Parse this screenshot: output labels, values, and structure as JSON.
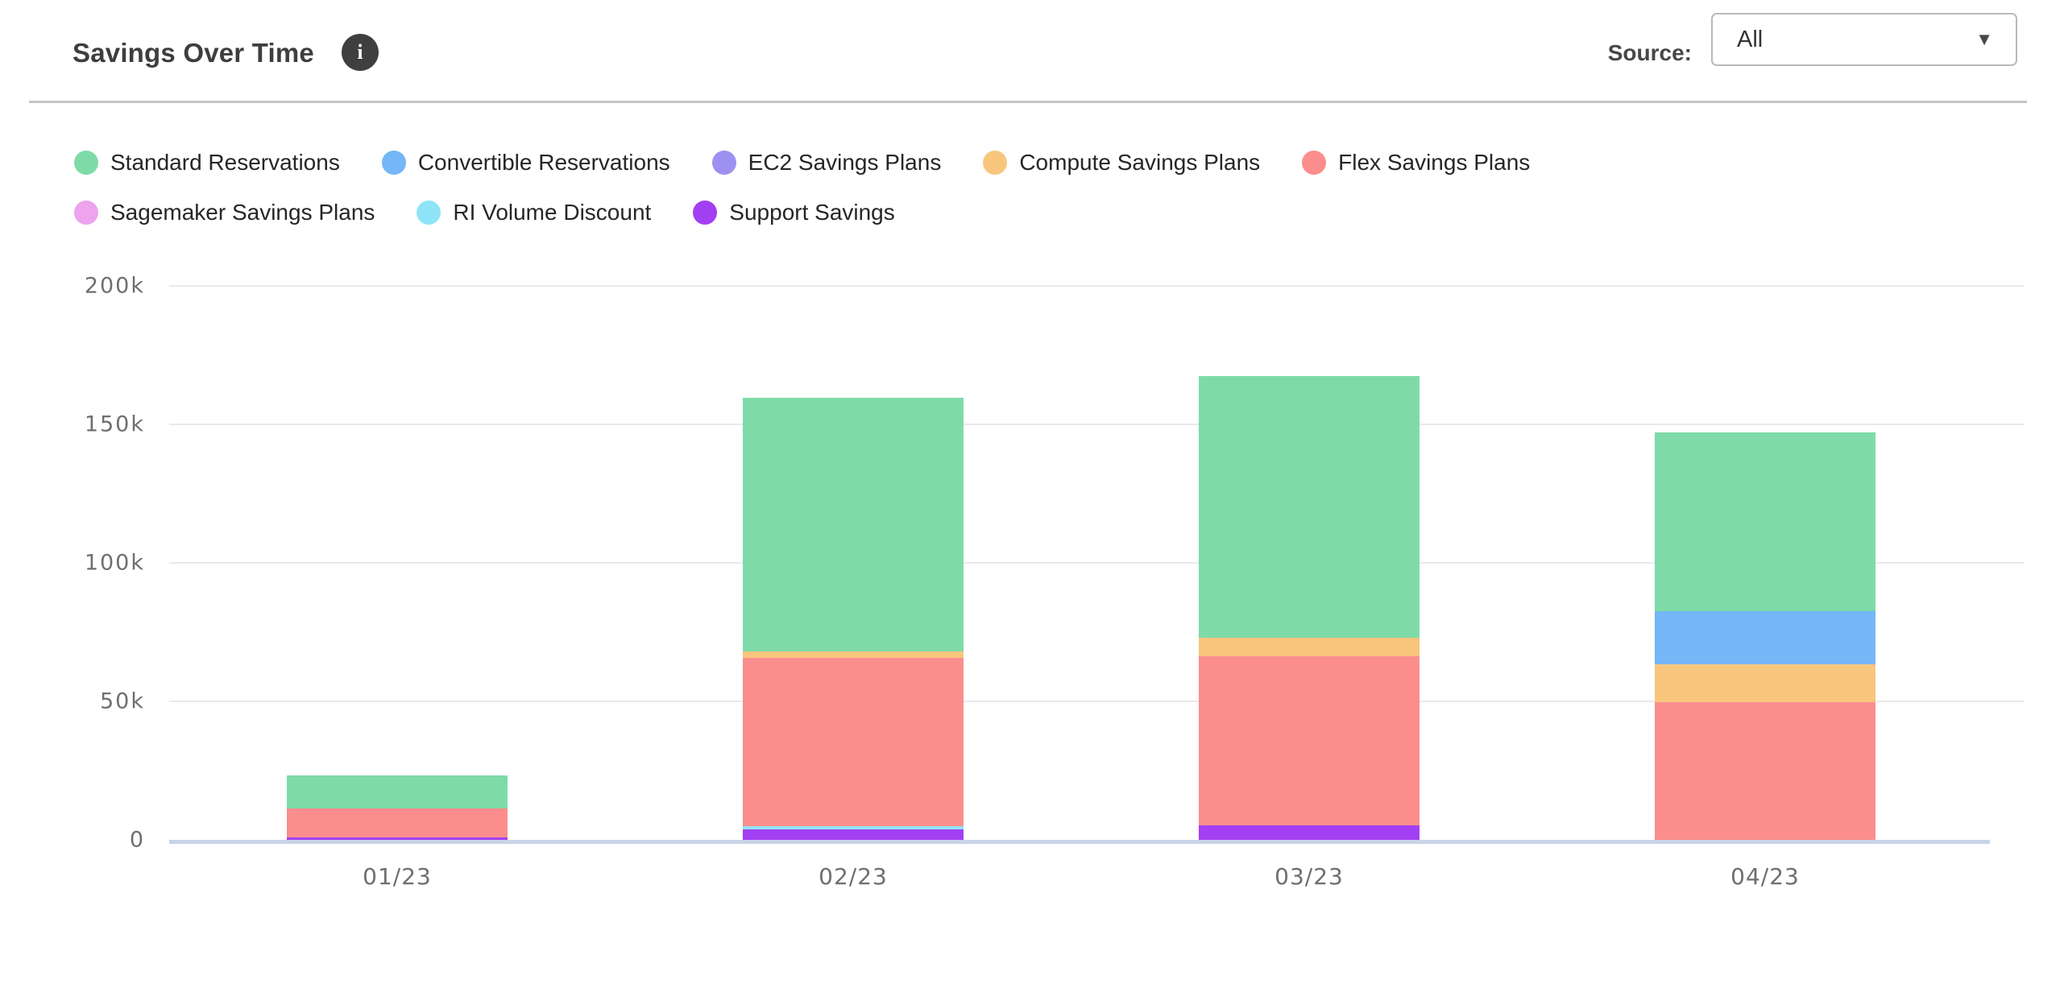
{
  "header": {
    "title": "Savings Over Time",
    "info_icon_glyph": "i",
    "source_label": "Source:",
    "source_value": "All",
    "dropdown_caret_glyph": "▼"
  },
  "chart_data": {
    "type": "bar",
    "stacked": true,
    "title": "Savings Over Time",
    "categories": [
      "01/23",
      "02/23",
      "03/23",
      "04/23"
    ],
    "value_unit": "k",
    "series": [
      {
        "name": "Standard Reservations",
        "color": "#7edba8",
        "values": [
          12.2,
          91.6,
          94.4,
          64.6
        ]
      },
      {
        "name": "Convertible Reservations",
        "color": "#74b6f6",
        "values": [
          0,
          0,
          0,
          19.3
        ]
      },
      {
        "name": "EC2 Savings Plans",
        "color": "#9d90f0",
        "values": [
          0,
          0,
          0,
          0
        ]
      },
      {
        "name": "Compute Savings Plans",
        "color": "#f8c67d",
        "values": [
          0,
          2.3,
          6.7,
          13.7
        ]
      },
      {
        "name": "Flex Savings Plans",
        "color": "#fb8d8d",
        "values": [
          10.2,
          60.9,
          61.0,
          49.6
        ]
      },
      {
        "name": "Sagemaker Savings Plans",
        "color": "#eea3ed",
        "values": [
          0,
          0,
          0,
          0
        ]
      },
      {
        "name": "RI Volume Discount",
        "color": "#8fe4f8",
        "values": [
          0,
          0.9,
          0,
          0
        ]
      },
      {
        "name": "Support Savings",
        "color": "#a33ff2",
        "values": [
          1.0,
          3.9,
          5.3,
          0
        ]
      }
    ],
    "stack_order_bottom_to_top": [
      "Support Savings",
      "RI Volume Discount",
      "Sagemaker Savings Plans",
      "Flex Savings Plans",
      "Compute Savings Plans",
      "EC2 Savings Plans",
      "Convertible Reservations",
      "Standard Reservations"
    ],
    "totals": [
      23.4,
      159.6,
      167.4,
      147.2
    ],
    "y_ticks": [
      {
        "label": "200k",
        "value": 200
      },
      {
        "label": "150k",
        "value": 150
      },
      {
        "label": "100k",
        "value": 100
      },
      {
        "label": "50k",
        "value": 50
      },
      {
        "label": "0",
        "value": 0
      }
    ],
    "ylim": [
      0,
      200
    ],
    "grid": true,
    "legend_position": "top"
  },
  "colors": {
    "axis_line": "#c9d2e9",
    "gridline": "#e9e9ec",
    "tick_text": "#6f6f6f",
    "title_text": "#3e3e3e",
    "legend_text": "#262626",
    "divider": "#c5c5c5",
    "info_icon_bg": "#3f3f3f",
    "dropdown_border": "#b9b9b9"
  }
}
